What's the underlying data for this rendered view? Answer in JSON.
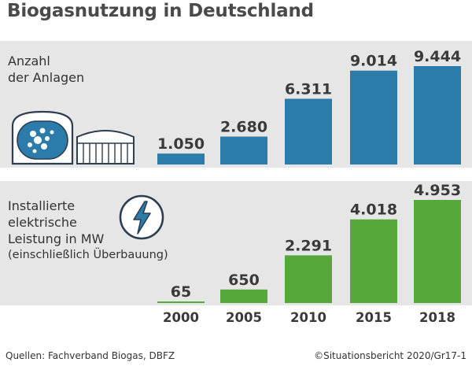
{
  "title": "Biogasnutzung in Deutschland",
  "panels": {
    "anlagen": {
      "label_lines": [
        "Anzahl",
        "der Anlagen"
      ]
    },
    "leistung": {
      "label_lines": [
        "Installierte",
        "elektrische",
        "Leistung in MW"
      ],
      "label_sub": "(einschließlich Überbauung)"
    }
  },
  "icons": {
    "anlagen": "biogas-plant-icon",
    "leistung": "lightning-bolt-icon"
  },
  "colors": {
    "anlagen": "#2b7bab",
    "leistung": "#56a83b",
    "panel_bg": "#e6e6e6",
    "text": "#3a3a3a"
  },
  "chart_data": [
    {
      "type": "bar",
      "title": "Anzahl der Anlagen",
      "categories": [
        "2000",
        "2005",
        "2010",
        "2015",
        "2018"
      ],
      "values": [
        1050,
        2680,
        6311,
        9014,
        9444
      ],
      "value_labels": [
        "1.050",
        "2.680",
        "6.311",
        "9.014",
        "9.444"
      ]
    },
    {
      "type": "bar",
      "title": "Installierte elektrische Leistung in MW (einschließlich Überbauung)",
      "categories": [
        "2000",
        "2005",
        "2010",
        "2015",
        "2018"
      ],
      "values": [
        65,
        650,
        2291,
        4018,
        4953
      ],
      "value_labels": [
        "65",
        "650",
        "2.291",
        "4.018",
        "4.953"
      ]
    }
  ],
  "footer": {
    "source": "Quellen: Fachverband Biogas, DBFZ",
    "copyright": "©Situationsbericht 2020/Gr17-1"
  }
}
